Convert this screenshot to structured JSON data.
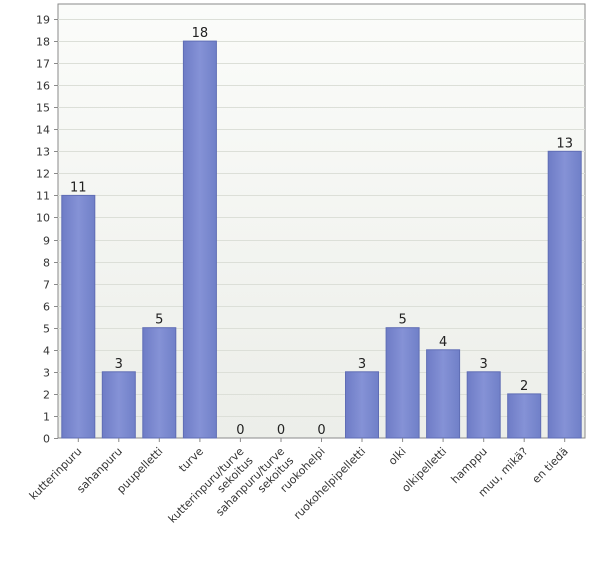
{
  "chart_data": {
    "type": "bar",
    "categories": [
      "kutterinpuru",
      "sahanpuru",
      "puupelletti",
      "turve",
      "kutterinpuru/turve sekoitus",
      "sahanpuru/turve sekoitus",
      "ruokohelpi",
      "ruokohelpipelletti",
      "olki",
      "olkipelletti",
      "hamppu",
      "muu, mikä?",
      "en tiedä"
    ],
    "values": [
      11,
      3,
      5,
      18,
      0,
      0,
      0,
      3,
      5,
      4,
      3,
      2,
      13
    ],
    "ylim": [
      0,
      19
    ],
    "yticks": [
      0,
      1,
      2,
      3,
      4,
      5,
      6,
      7,
      8,
      9,
      10,
      11,
      12,
      13,
      14,
      15,
      16,
      17,
      18,
      19
    ],
    "grid": true,
    "data_labels": true,
    "colors": {
      "bar_fill": "#7b89cf",
      "bar_stroke": "#5f6db5",
      "plot_background_top": "#fbfcfa",
      "plot_background_bottom": "#eceee9",
      "grid": "#dcdfd8",
      "axis": "#8a8a8a"
    }
  }
}
